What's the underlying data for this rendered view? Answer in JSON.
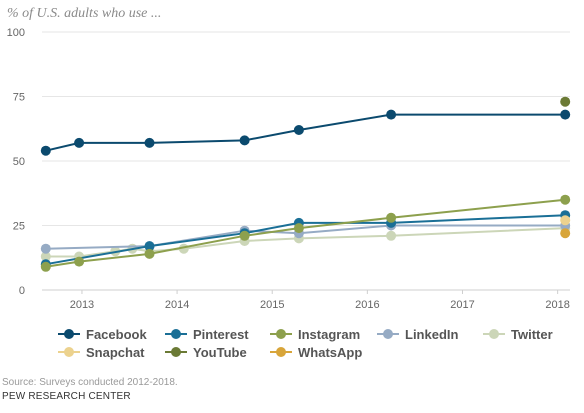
{
  "chart_data": {
    "type": "line",
    "subtitle": "% of U.S. adults who use ...",
    "y_ticks": [
      0,
      25,
      50,
      75,
      100
    ],
    "ylim": [
      0,
      100
    ],
    "x_ticks": [
      "2013",
      "2014",
      "2015",
      "2016",
      "2017",
      "2018"
    ],
    "x_tick_values": [
      2013,
      2014,
      2015,
      2016,
      2017,
      2018
    ],
    "xlim": [
      2012.58,
      2018.13
    ],
    "grid": true,
    "legend_position": "bottom",
    "series": [
      {
        "name": "Facebook",
        "color": "#0b4a6e",
        "points": [
          [
            2012.62,
            54
          ],
          [
            2012.97,
            57
          ],
          [
            2013.71,
            57
          ],
          [
            2014.71,
            58
          ],
          [
            2015.28,
            62
          ],
          [
            2016.25,
            68
          ],
          [
            2018.08,
            68
          ]
        ]
      },
      {
        "name": "Pinterest",
        "color": "#1a6f96",
        "points": [
          [
            2012.62,
            10
          ],
          [
            2013.71,
            17
          ],
          [
            2014.71,
            22
          ],
          [
            2015.28,
            26
          ],
          [
            2016.25,
            26
          ],
          [
            2018.08,
            29
          ]
        ]
      },
      {
        "name": "Instagram",
        "color": "#8da04d",
        "points": [
          [
            2012.62,
            9
          ],
          [
            2012.97,
            11
          ],
          [
            2013.71,
            14
          ],
          [
            2014.71,
            21
          ],
          [
            2015.28,
            24
          ],
          [
            2016.25,
            28
          ],
          [
            2018.08,
            35
          ]
        ]
      },
      {
        "name": "LinkedIn",
        "color": "#96abc4",
        "points": [
          [
            2012.62,
            16
          ],
          [
            2013.71,
            17
          ],
          [
            2014.71,
            23
          ],
          [
            2015.28,
            22
          ],
          [
            2016.25,
            25
          ],
          [
            2018.08,
            25
          ]
        ]
      },
      {
        "name": "Twitter",
        "color": "#ccd6b8",
        "points": [
          [
            2012.62,
            13
          ],
          [
            2012.97,
            13
          ],
          [
            2013.35,
            15
          ],
          [
            2013.53,
            16
          ],
          [
            2013.71,
            15
          ],
          [
            2014.07,
            16
          ],
          [
            2014.71,
            19
          ],
          [
            2015.28,
            20
          ],
          [
            2016.25,
            21
          ],
          [
            2018.08,
            24
          ]
        ]
      },
      {
        "name": "Snapchat",
        "color": "#ecd28e",
        "points": [
          [
            2018.08,
            27
          ]
        ]
      },
      {
        "name": "YouTube",
        "color": "#6b7a35",
        "points": [
          [
            2018.08,
            73
          ]
        ]
      },
      {
        "name": "WhatsApp",
        "color": "#d8a53a",
        "points": [
          [
            2018.08,
            22
          ]
        ]
      }
    ]
  },
  "footer": {
    "source": "Source: Surveys conducted 2012-2018.",
    "org": "PEW RESEARCH CENTER"
  }
}
